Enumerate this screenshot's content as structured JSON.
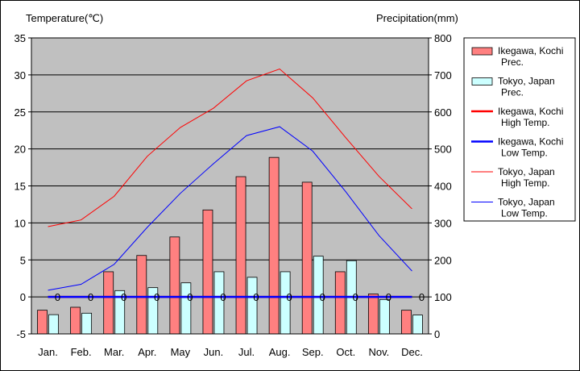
{
  "chart_data": {
    "type": "bar",
    "left_axis_title": "Temperature(℃)",
    "right_axis_title": "Precipitation(mm)",
    "categories": [
      "Jan.",
      "Feb.",
      "Mar.",
      "Apr.",
      "May",
      "Jun.",
      "Jul.",
      "Aug.",
      "Sep.",
      "Oct.",
      "Nov.",
      "Dec."
    ],
    "left_ylim": [
      -5,
      35
    ],
    "left_ticks": [
      "35",
      "30",
      "25",
      "20",
      "15",
      "10",
      "5",
      "0",
      "-5"
    ],
    "right_ylim": [
      0,
      800
    ],
    "right_ticks": [
      "800",
      "700",
      "600",
      "500",
      "400",
      "300",
      "200",
      "100",
      "0"
    ],
    "grid": true,
    "legend_position": "right",
    "precip_series": [
      {
        "legend": [
          "Ikegawa, Kochi",
          "Prec."
        ],
        "color": "#ff8080",
        "values": [
          64,
          72,
          168,
          212,
          262,
          335,
          425,
          477,
          410,
          168,
          108,
          64
        ]
      },
      {
        "legend": [
          "Tokyo, Japan",
          "Prec."
        ],
        "color": "#ccffff",
        "values": [
          52,
          56,
          117,
          125,
          138,
          168,
          153,
          168,
          210,
          198,
          93,
          51
        ]
      }
    ],
    "temp_series": [
      {
        "legend": [
          "Ikegawa, Kochi",
          "High Temp."
        ],
        "color": "#ff0000",
        "width": 2.5,
        "values": [
          0,
          0,
          0,
          0,
          0,
          0,
          0,
          0,
          0,
          0,
          0,
          0
        ]
      },
      {
        "legend": [
          "Ikegawa, Kochi",
          "Low Temp."
        ],
        "color": "#0000ff",
        "width": 2.5,
        "values": [
          0,
          0,
          0,
          0,
          0,
          0,
          0,
          0,
          0,
          0,
          0,
          0
        ]
      },
      {
        "legend": [
          "Tokyo, Japan",
          "High Temp."
        ],
        "color": "#ff0000",
        "width": 1,
        "values": [
          9.5,
          10.4,
          13.6,
          19.0,
          22.9,
          25.5,
          29.2,
          30.8,
          26.9,
          21.5,
          16.3,
          11.9
        ]
      },
      {
        "legend": [
          "Tokyo, Japan",
          "Low Temp."
        ],
        "color": "#0000ff",
        "width": 1,
        "values": [
          0.9,
          1.7,
          4.4,
          9.4,
          14.0,
          18.0,
          21.8,
          23.0,
          19.7,
          14.2,
          8.3,
          3.5
        ]
      }
    ],
    "marker_label": "0",
    "colors": {
      "plot_bg": "#c0c0c0",
      "grid": "#000000"
    }
  }
}
